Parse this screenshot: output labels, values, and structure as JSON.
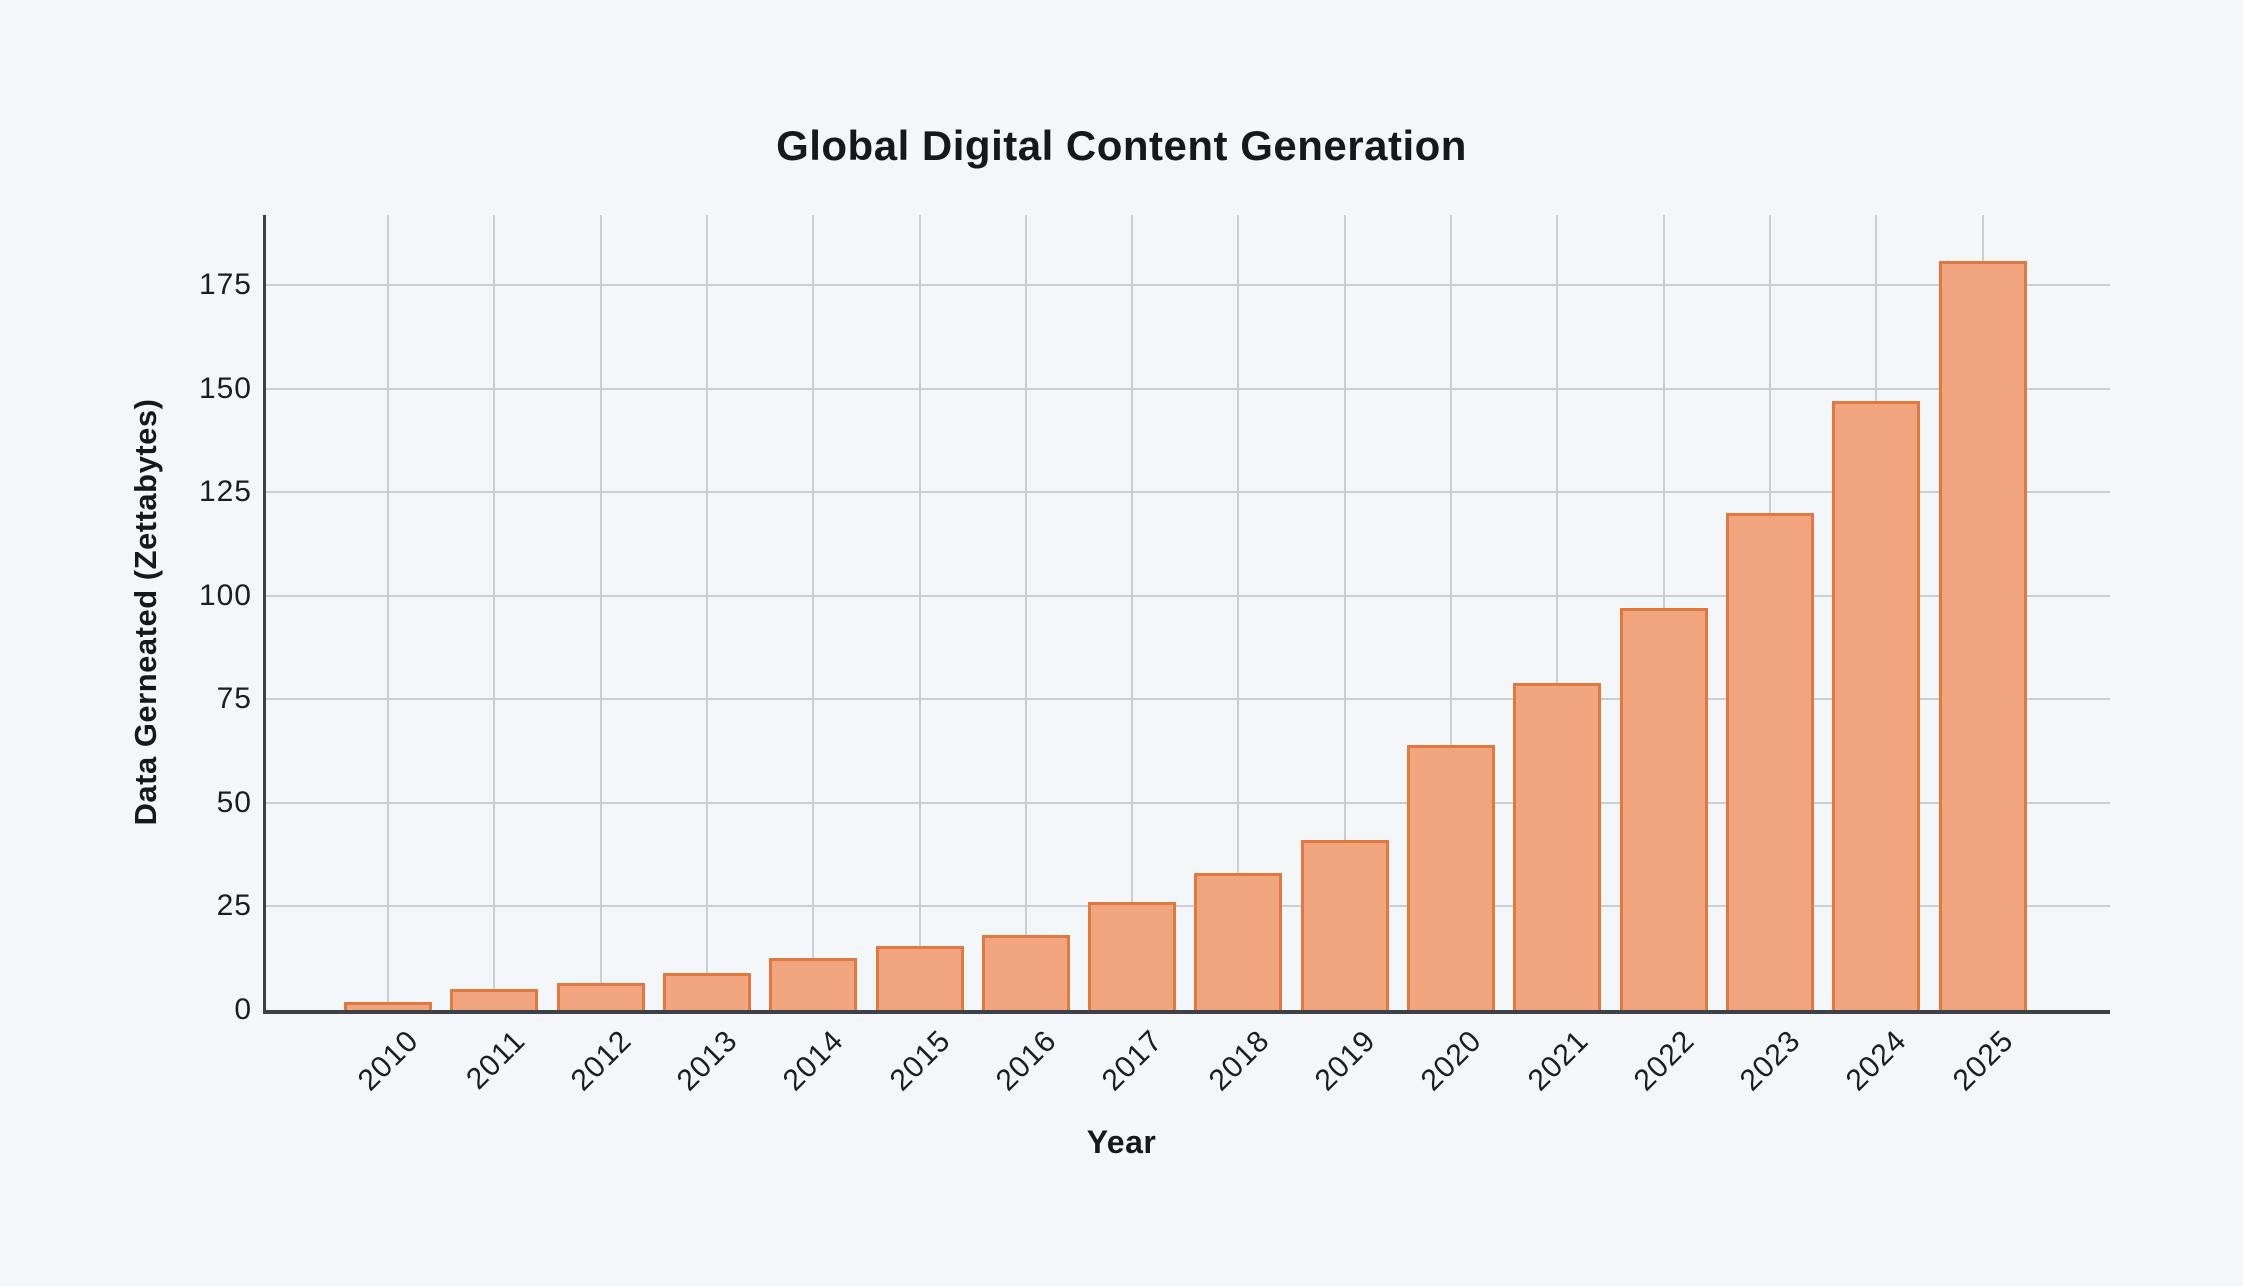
{
  "title": "Global Digital Content Generation",
  "chart_data": {
    "type": "bar",
    "title": "Global Digital Content Generation",
    "xlabel": "Year",
    "ylabel": "Data Gerneated (Zettabytes)",
    "categories": [
      "2010",
      "2011",
      "2012",
      "2013",
      "2014",
      "2015",
      "2016",
      "2017",
      "2018",
      "2019",
      "2020",
      "2021",
      "2022",
      "2023",
      "2024",
      "2025"
    ],
    "values": [
      2,
      5,
      6.5,
      9,
      12.5,
      15.5,
      18,
      26,
      33,
      41,
      64,
      79,
      97,
      120,
      147,
      181
    ],
    "unit": "Zettabytes",
    "ylim": [
      0,
      192
    ],
    "yticks": [
      0,
      25,
      50,
      75,
      100,
      125,
      150,
      175
    ],
    "grid": true,
    "legend": "none",
    "bar_orientation": "vertical",
    "x_tick_rotation_deg": -45,
    "colors": {
      "background": "#f4f7fa",
      "bar_fill": "#f0a57e",
      "bar_border": "#e0793f",
      "axis": "#3b4147",
      "gridline": "#c9ced6",
      "text": "#16191d"
    }
  }
}
